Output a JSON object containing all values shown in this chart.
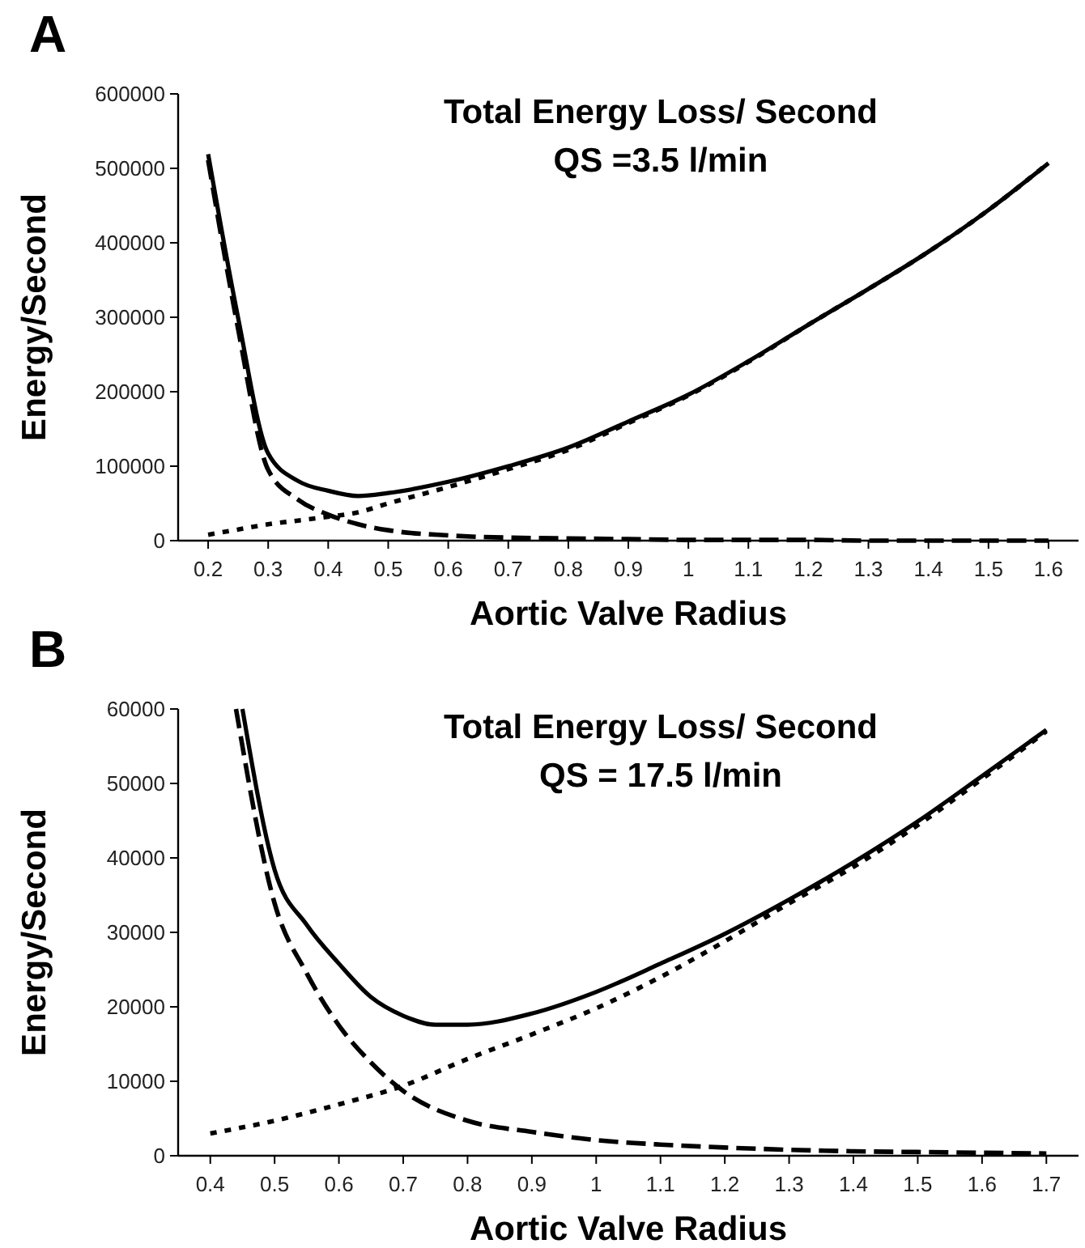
{
  "chart_data": [
    {
      "type": "line",
      "title": "Total Energy Loss/ Second",
      "subtitle": "QS =3.5 l/min",
      "xlabel": "Aortic Valve Radius",
      "ylabel": "Energy/Second",
      "annotations": [
        "A"
      ],
      "xlim": [
        0.15,
        1.65
      ],
      "xticks": [
        0.2,
        0.3,
        0.4,
        0.5,
        0.6,
        0.7,
        0.8,
        0.9,
        1,
        1.1,
        1.2,
        1.3,
        1.4,
        1.5,
        1.6
      ],
      "ylim": [
        0,
        600000
      ],
      "yticks": [
        0,
        100000,
        200000,
        300000,
        400000,
        500000,
        600000
      ],
      "grid": false,
      "series": [
        {
          "color": "#000000",
          "line_style": "solid",
          "x": [
            0.2,
            0.25,
            0.3,
            0.35,
            0.4,
            0.45,
            0.5,
            0.6,
            0.7,
            0.8,
            0.9,
            1,
            1.1,
            1.2,
            1.3,
            1.4,
            1.5,
            1.6
          ],
          "values": [
            519000,
            299000,
            117000,
            80000,
            67000,
            60000,
            64000,
            79000,
            100000,
            125000,
            160000,
            196000,
            241000,
            290000,
            338000,
            388000,
            444000,
            507000
          ]
        },
        {
          "color": "#000000",
          "line_style": "dashed",
          "x": [
            0.2,
            0.25,
            0.3,
            0.35,
            0.4,
            0.45,
            0.5,
            0.6,
            0.7,
            0.8,
            0.9,
            1,
            1.1,
            1.2,
            1.3,
            1.4,
            1.5,
            1.6
          ],
          "values": [
            511000,
            284000,
            95000,
            55000,
            35000,
            22000,
            14000,
            7000,
            4000,
            3000,
            2000,
            1000,
            1000,
            1000,
            0,
            0,
            0,
            0
          ]
        },
        {
          "color": "#000000",
          "line_style": "dotted",
          "x": [
            0.2,
            0.25,
            0.3,
            0.35,
            0.4,
            0.45,
            0.5,
            0.6,
            0.7,
            0.8,
            0.9,
            1,
            1.1,
            1.2,
            1.3,
            1.4,
            1.5,
            1.6
          ],
          "values": [
            8000,
            15000,
            22000,
            27000,
            32000,
            38000,
            50000,
            72000,
            96000,
            122000,
            158000,
            195000,
            240000,
            290000,
            338000,
            388000,
            444000,
            507000
          ]
        }
      ]
    },
    {
      "type": "line",
      "title": "Total Energy Loss/ Second",
      "subtitle": "QS = 17.5 l/min",
      "xlabel": "Aortic Valve Radius",
      "ylabel": "Energy/Second",
      "annotations": [
        "B"
      ],
      "xlim": [
        0.35,
        1.75
      ],
      "xticks": [
        0.4,
        0.5,
        0.6,
        0.7,
        0.8,
        0.9,
        1,
        1.1,
        1.2,
        1.3,
        1.4,
        1.5,
        1.6,
        1.7
      ],
      "ylim": [
        0,
        60000
      ],
      "yticks": [
        0,
        10000,
        20000,
        30000,
        40000,
        50000,
        60000
      ],
      "grid": false,
      "series": [
        {
          "color": "#000000",
          "line_style": "solid",
          "x": [
            0.45,
            0.5,
            0.55,
            0.6,
            0.65,
            0.7,
            0.75,
            0.8,
            0.9,
            1,
            1.1,
            1.2,
            1.3,
            1.4,
            1.5,
            1.6,
            1.7
          ],
          "values": [
            60000,
            38400,
            31000,
            25800,
            21300,
            18800,
            17600,
            17600,
            19100,
            22000,
            25800,
            29800,
            34400,
            39400,
            44900,
            51000,
            57200
          ]
        },
        {
          "color": "#000000",
          "line_style": "dashed",
          "x": [
            0.44,
            0.5,
            0.55,
            0.6,
            0.65,
            0.7,
            0.8,
            0.9,
            1,
            1.1,
            1.2,
            1.3,
            1.4,
            1.5,
            1.6,
            1.7
          ],
          "values": [
            60000,
            33900,
            24500,
            17500,
            12500,
            8700,
            4700,
            3200,
            2100,
            1500,
            1100,
            800,
            600,
            500,
            400,
            300
          ]
        },
        {
          "color": "#000000",
          "line_style": "dotted",
          "x": [
            0.4,
            0.5,
            0.6,
            0.7,
            0.8,
            0.9,
            1,
            1.1,
            1.2,
            1.3,
            1.4,
            1.5,
            1.6,
            1.7
          ],
          "values": [
            3000,
            4700,
            6900,
            9400,
            13000,
            16300,
            19800,
            24000,
            28800,
            33900,
            38800,
            44400,
            50600,
            57000
          ]
        }
      ]
    }
  ]
}
